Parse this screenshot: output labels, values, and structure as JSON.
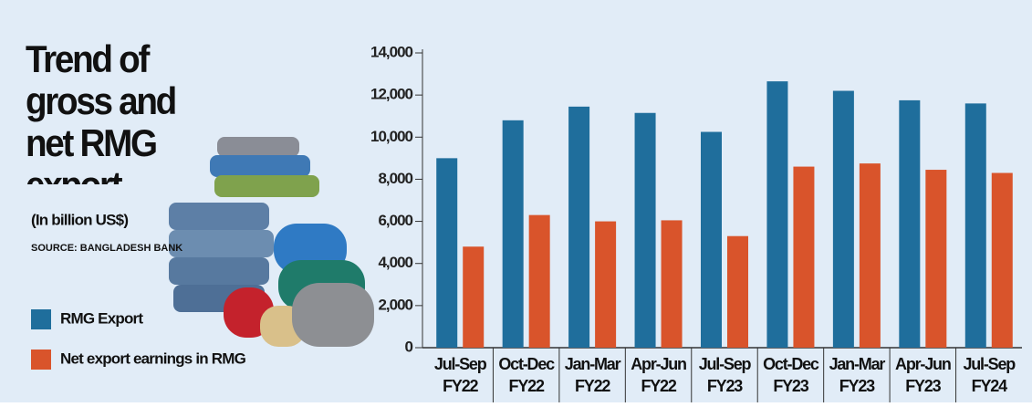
{
  "chart_data": {
    "type": "bar",
    "title": "Trend of gross and net RMG export",
    "subtitle": "(In billion US$)",
    "source": "SOURCE: BANGLADESH BANK",
    "categories": [
      [
        "Jul-Sep",
        "FY22"
      ],
      [
        "Oct-Dec",
        "FY22"
      ],
      [
        "Jan-Mar",
        "FY22"
      ],
      [
        "Apr-Jun",
        "FY22"
      ],
      [
        "Jul-Sep",
        "FY23"
      ],
      [
        "Oct-Dec",
        "FY23"
      ],
      [
        "Jan-Mar",
        "FY23"
      ],
      [
        "Apr-Jun",
        "FY23"
      ],
      [
        "Jul-Sep",
        "FY24"
      ]
    ],
    "series": [
      {
        "name": "RMG Export",
        "color": "#1f6e9c",
        "values": [
          9000,
          10800,
          11450,
          11150,
          10250,
          12650,
          12200,
          11750,
          11600
        ]
      },
      {
        "name": "Net export earnings in RMG",
        "color": "#d9542b",
        "values": [
          4800,
          6300,
          6000,
          6050,
          5300,
          8600,
          8750,
          8450,
          8300
        ]
      }
    ],
    "ylim": [
      0,
      14000
    ],
    "yticks": [
      0,
      {
        "value": 2000,
        "label": "2,000"
      },
      {
        "value": 4000,
        "label": "4,000"
      },
      {
        "value": 6000,
        "label": "6,000"
      },
      {
        "value": 8000,
        "label": "8,000"
      },
      {
        "value": 10000,
        "label": "10,000"
      },
      {
        "value": 12000,
        "label": "12,000"
      },
      {
        "value": 14000,
        "label": "14,000"
      }
    ],
    "grid": false
  }
}
